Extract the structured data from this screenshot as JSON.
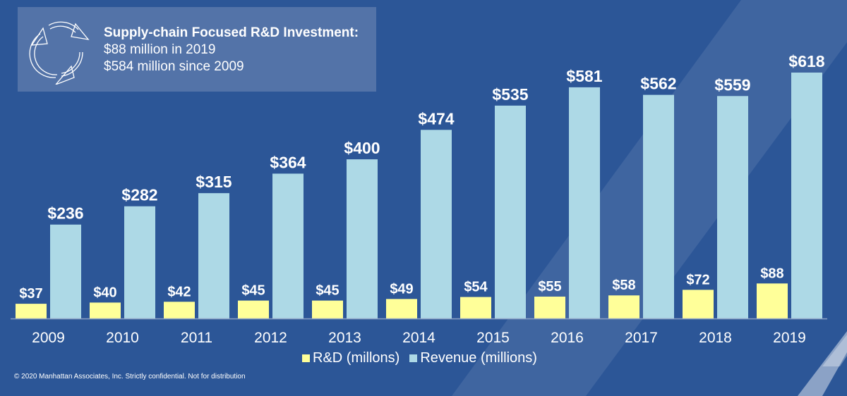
{
  "colors": {
    "background": "#2c5697",
    "rd": "#ffff99",
    "revenue": "#add9e6",
    "text": "#ffffff"
  },
  "infobox": {
    "icon": "recycle-arrows-icon",
    "title": "Supply-chain Focused R&D Investment:",
    "line1": "$88 million in 2019",
    "line2": "$584 million since 2009"
  },
  "footer": "© 2020 Manhattan Associates, Inc. Strictly confidential. Not for distribution",
  "chart_data": {
    "type": "bar",
    "title": "",
    "xlabel": "",
    "ylabel": "",
    "categories": [
      "2009",
      "2010",
      "2011",
      "2012",
      "2013",
      "2014",
      "2015",
      "2016",
      "2017",
      "2018",
      "2019"
    ],
    "series": [
      {
        "name": "R&D (millons)",
        "color": "#ffff99",
        "values": [
          37,
          40,
          42,
          45,
          45,
          49,
          54,
          55,
          58,
          72,
          88
        ],
        "labels": [
          "$37",
          "$40",
          "$42",
          "$45",
          "$45",
          "$49",
          "$54",
          "$55",
          "$58",
          "$72",
          "$88"
        ]
      },
      {
        "name": "Revenue (millions)",
        "color": "#add9e6",
        "values": [
          236,
          282,
          315,
          364,
          400,
          474,
          535,
          581,
          562,
          559,
          618
        ],
        "labels": [
          "$236",
          "$282",
          "$315",
          "$364",
          "$400",
          "$474",
          "$535",
          "$581",
          "$562",
          "$559",
          "$618"
        ]
      }
    ],
    "ylim": [
      0,
      618
    ],
    "grid": false,
    "legend": "bottom-center"
  }
}
